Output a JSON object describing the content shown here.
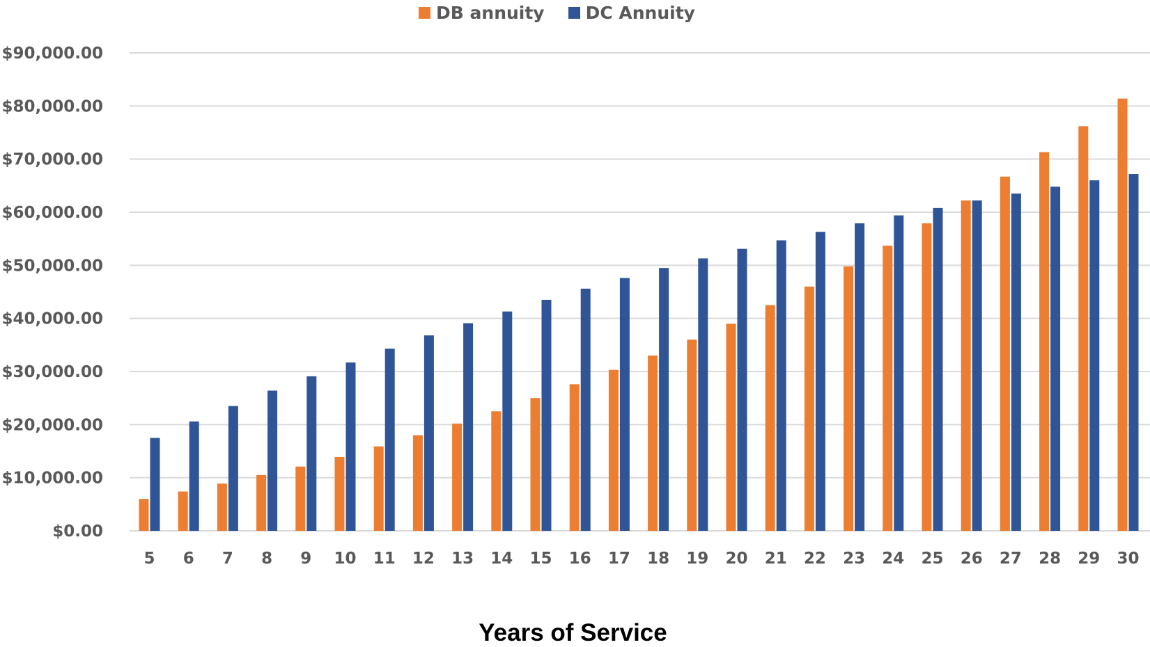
{
  "chart_data": {
    "type": "bar",
    "title": "",
    "xlabel": "Years of Service",
    "ylabel": "",
    "categories": [
      "5",
      "6",
      "7",
      "8",
      "9",
      "10",
      "11",
      "12",
      "13",
      "14",
      "15",
      "16",
      "17",
      "18",
      "19",
      "20",
      "21",
      "22",
      "23",
      "24",
      "25",
      "26",
      "27",
      "28",
      "29",
      "30"
    ],
    "series": [
      {
        "name": "DB annuity",
        "color": "#ED7D31",
        "values": [
          6000,
          7400,
          8900,
          10500,
          12100,
          13900,
          15900,
          18000,
          20200,
          22500,
          25000,
          27600,
          30300,
          33000,
          36000,
          39000,
          42500,
          46000,
          49800,
          53700,
          57900,
          62200,
          66700,
          71300,
          76200,
          81400
        ]
      },
      {
        "name": "DC Annuity",
        "color": "#2F5597",
        "values": [
          17500,
          20600,
          23500,
          26400,
          29100,
          31700,
          34300,
          36800,
          39100,
          41300,
          43500,
          45600,
          47600,
          49500,
          51300,
          53100,
          54700,
          56300,
          57900,
          59400,
          60800,
          62200,
          63500,
          64800,
          66000,
          67200
        ]
      }
    ],
    "ylim": [
      0,
      90000
    ],
    "yticks": [
      0,
      10000,
      20000,
      30000,
      40000,
      50000,
      60000,
      70000,
      80000,
      90000
    ],
    "ytick_labels": [
      "$0.00",
      "$10,000.00",
      "$20,000.00",
      "$30,000.00",
      "$40,000.00",
      "$50,000.00",
      "$60,000.00",
      "$70,000.00",
      "$80,000.00",
      "$90,000.00"
    ],
    "grid": true,
    "gridline_color": "#D9D9D9",
    "legend_position": "top-center"
  }
}
